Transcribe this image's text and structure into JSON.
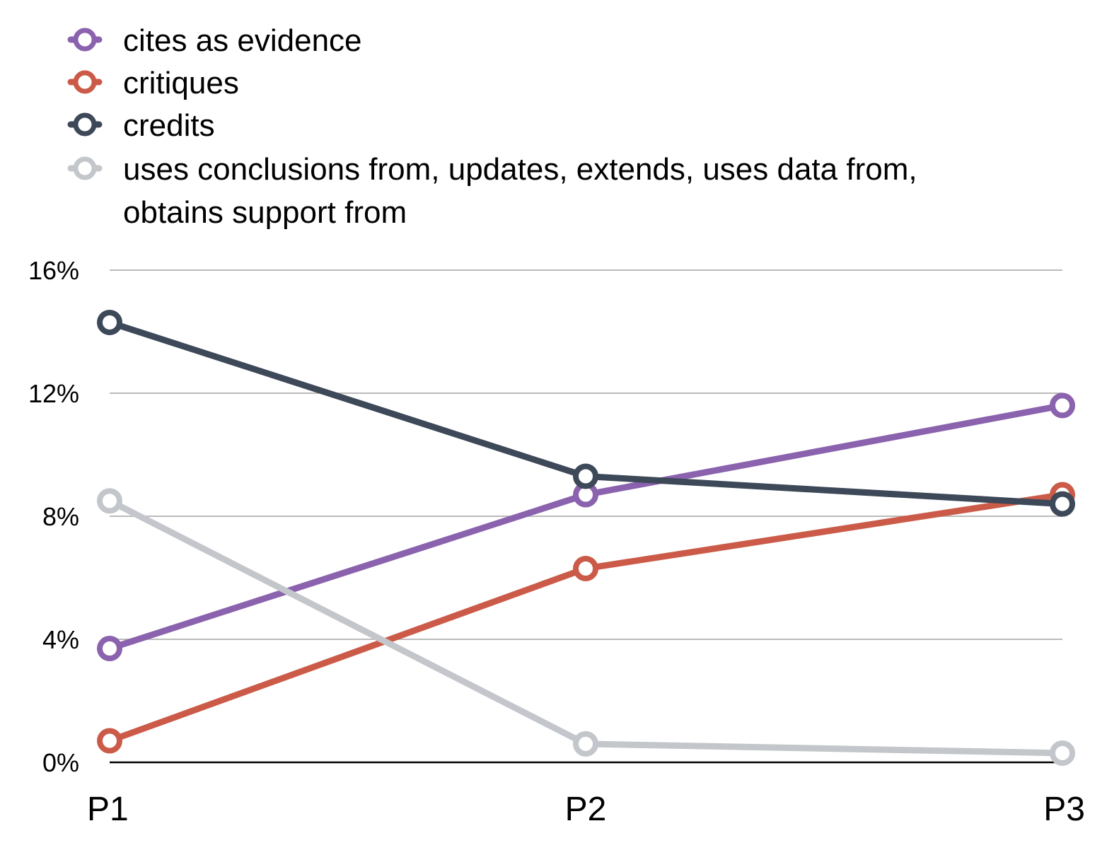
{
  "chart_data": {
    "type": "line",
    "categories": [
      "P1",
      "P2",
      "P3"
    ],
    "series": [
      {
        "name": "cites as evidence",
        "color": "#8A62AD",
        "values": [
          3.7,
          8.7,
          11.6
        ]
      },
      {
        "name": "critiques",
        "color": "#CB5B48",
        "values": [
          0.7,
          6.3,
          8.7
        ]
      },
      {
        "name": "credits",
        "color": "#3D4858",
        "values": [
          14.3,
          9.3,
          8.4
        ]
      },
      {
        "name_lines": [
          "uses conclusions from, updates, extends, uses data from,",
          "obtains support from"
        ],
        "color": "#C3C6CA",
        "values": [
          8.5,
          0.6,
          0.3
        ]
      }
    ],
    "y_ticks": [
      "0%",
      "4%",
      "8%",
      "12%",
      "16%"
    ],
    "y_tick_values": [
      0,
      4,
      8,
      12,
      16
    ],
    "ylim": [
      0,
      16
    ],
    "grid": true,
    "legend_position": "top-left",
    "axis_color": "#000000",
    "grid_color": "#BBBBBB"
  }
}
